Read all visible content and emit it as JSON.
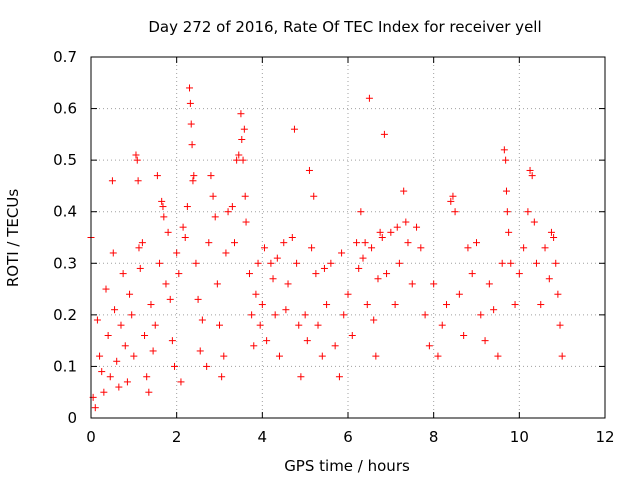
{
  "chart_data": {
    "type": "scatter",
    "title": "Day 272 of 2016, Rate Of TEC Index for receiver yell",
    "xlabel": "GPS time / hours",
    "ylabel": "ROTI / TECUs",
    "xlim": [
      0,
      12
    ],
    "ylim": [
      0,
      0.7
    ],
    "xticks": [
      0,
      2,
      4,
      6,
      8,
      10,
      12
    ],
    "yticks": [
      0,
      0.1,
      0.2,
      0.3,
      0.4,
      0.5,
      0.6,
      0.7
    ],
    "xtick_labels": [
      "0",
      "2",
      "4",
      "6",
      "8",
      "10",
      "12"
    ],
    "ytick_labels": [
      "0",
      "0.1",
      "0.2",
      "0.3",
      "0.4",
      "0.5",
      "0.6",
      "0.7"
    ],
    "grid": true,
    "marker": "+",
    "color": "#ff0000",
    "series": [
      {
        "name": "ROTI",
        "points": [
          [
            0.0,
            0.35
          ],
          [
            0.05,
            0.04
          ],
          [
            0.1,
            0.02
          ],
          [
            0.15,
            0.19
          ],
          [
            0.2,
            0.12
          ],
          [
            0.25,
            0.09
          ],
          [
            0.3,
            0.05
          ],
          [
            0.35,
            0.25
          ],
          [
            0.4,
            0.16
          ],
          [
            0.45,
            0.08
          ],
          [
            0.5,
            0.46
          ],
          [
            0.52,
            0.32
          ],
          [
            0.55,
            0.21
          ],
          [
            0.6,
            0.11
          ],
          [
            0.65,
            0.06
          ],
          [
            0.7,
            0.18
          ],
          [
            0.75,
            0.28
          ],
          [
            0.8,
            0.14
          ],
          [
            0.85,
            0.07
          ],
          [
            0.9,
            0.24
          ],
          [
            0.95,
            0.2
          ],
          [
            1.0,
            0.12
          ],
          [
            1.05,
            0.51
          ],
          [
            1.08,
            0.5
          ],
          [
            1.1,
            0.46
          ],
          [
            1.12,
            0.33
          ],
          [
            1.15,
            0.29
          ],
          [
            1.2,
            0.34
          ],
          [
            1.25,
            0.16
          ],
          [
            1.3,
            0.08
          ],
          [
            1.35,
            0.05
          ],
          [
            1.4,
            0.22
          ],
          [
            1.45,
            0.13
          ],
          [
            1.5,
            0.18
          ],
          [
            1.55,
            0.47
          ],
          [
            1.6,
            0.3
          ],
          [
            1.65,
            0.42
          ],
          [
            1.68,
            0.41
          ],
          [
            1.7,
            0.39
          ],
          [
            1.75,
            0.26
          ],
          [
            1.8,
            0.36
          ],
          [
            1.85,
            0.23
          ],
          [
            1.9,
            0.15
          ],
          [
            1.95,
            0.1
          ],
          [
            2.0,
            0.32
          ],
          [
            2.05,
            0.28
          ],
          [
            2.1,
            0.07
          ],
          [
            2.15,
            0.37
          ],
          [
            2.2,
            0.35
          ],
          [
            2.25,
            0.41
          ],
          [
            2.3,
            0.64
          ],
          [
            2.32,
            0.61
          ],
          [
            2.34,
            0.57
          ],
          [
            2.36,
            0.53
          ],
          [
            2.38,
            0.46
          ],
          [
            2.4,
            0.47
          ],
          [
            2.45,
            0.3
          ],
          [
            2.5,
            0.23
          ],
          [
            2.55,
            0.13
          ],
          [
            2.6,
            0.19
          ],
          [
            2.7,
            0.1
          ],
          [
            2.75,
            0.34
          ],
          [
            2.8,
            0.47
          ],
          [
            2.85,
            0.43
          ],
          [
            2.9,
            0.39
          ],
          [
            2.95,
            0.26
          ],
          [
            3.0,
            0.18
          ],
          [
            3.05,
            0.08
          ],
          [
            3.1,
            0.12
          ],
          [
            3.15,
            0.32
          ],
          [
            3.2,
            0.4
          ],
          [
            3.3,
            0.41
          ],
          [
            3.35,
            0.34
          ],
          [
            3.4,
            0.5
          ],
          [
            3.45,
            0.51
          ],
          [
            3.5,
            0.59
          ],
          [
            3.52,
            0.54
          ],
          [
            3.55,
            0.5
          ],
          [
            3.58,
            0.56
          ],
          [
            3.6,
            0.43
          ],
          [
            3.62,
            0.38
          ],
          [
            3.7,
            0.28
          ],
          [
            3.75,
            0.2
          ],
          [
            3.8,
            0.14
          ],
          [
            3.85,
            0.24
          ],
          [
            3.9,
            0.3
          ],
          [
            3.95,
            0.18
          ],
          [
            4.0,
            0.22
          ],
          [
            4.05,
            0.33
          ],
          [
            4.1,
            0.15
          ],
          [
            4.2,
            0.3
          ],
          [
            4.25,
            0.27
          ],
          [
            4.3,
            0.2
          ],
          [
            4.35,
            0.31
          ],
          [
            4.4,
            0.12
          ],
          [
            4.5,
            0.34
          ],
          [
            4.55,
            0.21
          ],
          [
            4.6,
            0.26
          ],
          [
            4.7,
            0.35
          ],
          [
            4.75,
            0.56
          ],
          [
            4.8,
            0.3
          ],
          [
            4.85,
            0.18
          ],
          [
            4.9,
            0.08
          ],
          [
            5.0,
            0.2
          ],
          [
            5.05,
            0.15
          ],
          [
            5.1,
            0.48
          ],
          [
            5.15,
            0.33
          ],
          [
            5.2,
            0.43
          ],
          [
            5.25,
            0.28
          ],
          [
            5.3,
            0.18
          ],
          [
            5.4,
            0.12
          ],
          [
            5.45,
            0.29
          ],
          [
            5.5,
            0.22
          ],
          [
            5.6,
            0.3
          ],
          [
            5.7,
            0.14
          ],
          [
            5.8,
            0.08
          ],
          [
            5.85,
            0.32
          ],
          [
            5.9,
            0.2
          ],
          [
            6.0,
            0.24
          ],
          [
            6.1,
            0.16
          ],
          [
            6.2,
            0.34
          ],
          [
            6.25,
            0.29
          ],
          [
            6.3,
            0.4
          ],
          [
            6.35,
            0.31
          ],
          [
            6.4,
            0.34
          ],
          [
            6.45,
            0.22
          ],
          [
            6.5,
            0.62
          ],
          [
            6.55,
            0.33
          ],
          [
            6.6,
            0.19
          ],
          [
            6.65,
            0.12
          ],
          [
            6.7,
            0.27
          ],
          [
            6.75,
            0.36
          ],
          [
            6.8,
            0.35
          ],
          [
            6.85,
            0.55
          ],
          [
            6.9,
            0.28
          ],
          [
            7.0,
            0.36
          ],
          [
            7.1,
            0.22
          ],
          [
            7.15,
            0.37
          ],
          [
            7.2,
            0.3
          ],
          [
            7.3,
            0.44
          ],
          [
            7.35,
            0.38
          ],
          [
            7.4,
            0.34
          ],
          [
            7.5,
            0.26
          ],
          [
            7.6,
            0.37
          ],
          [
            7.7,
            0.33
          ],
          [
            7.8,
            0.2
          ],
          [
            7.9,
            0.14
          ],
          [
            8.0,
            0.26
          ],
          [
            8.1,
            0.12
          ],
          [
            8.2,
            0.18
          ],
          [
            8.3,
            0.22
          ],
          [
            8.4,
            0.42
          ],
          [
            8.45,
            0.43
          ],
          [
            8.5,
            0.4
          ],
          [
            8.6,
            0.24
          ],
          [
            8.7,
            0.16
          ],
          [
            8.8,
            0.33
          ],
          [
            8.9,
            0.28
          ],
          [
            9.0,
            0.34
          ],
          [
            9.1,
            0.2
          ],
          [
            9.2,
            0.15
          ],
          [
            9.3,
            0.26
          ],
          [
            9.4,
            0.21
          ],
          [
            9.5,
            0.12
          ],
          [
            9.6,
            0.3
          ],
          [
            9.65,
            0.52
          ],
          [
            9.68,
            0.5
          ],
          [
            9.7,
            0.44
          ],
          [
            9.72,
            0.4
          ],
          [
            9.75,
            0.36
          ],
          [
            9.8,
            0.3
          ],
          [
            9.9,
            0.22
          ],
          [
            10.0,
            0.28
          ],
          [
            10.1,
            0.33
          ],
          [
            10.2,
            0.4
          ],
          [
            10.25,
            0.48
          ],
          [
            10.3,
            0.47
          ],
          [
            10.35,
            0.38
          ],
          [
            10.4,
            0.3
          ],
          [
            10.5,
            0.22
          ],
          [
            10.6,
            0.33
          ],
          [
            10.7,
            0.27
          ],
          [
            10.75,
            0.36
          ],
          [
            10.8,
            0.35
          ],
          [
            10.85,
            0.3
          ],
          [
            10.9,
            0.24
          ],
          [
            10.95,
            0.18
          ],
          [
            11.0,
            0.12
          ]
        ]
      }
    ]
  }
}
